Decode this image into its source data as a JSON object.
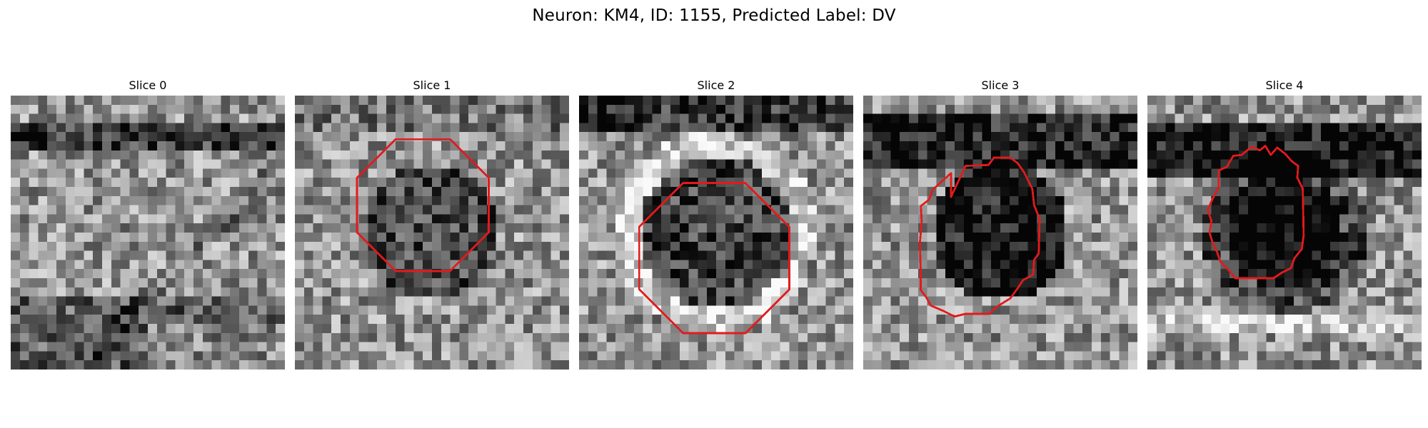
{
  "figure": {
    "title": "Neuron: KM4, ID: 1155, Predicted Label: DV"
  },
  "colors": {
    "contour": "#e31a1c",
    "image_colormap": "grayscale"
  },
  "panels": [
    {
      "title": "Slice 0",
      "seed": 11,
      "has_contour": false,
      "dark_band": true,
      "contour_shape": "none"
    },
    {
      "title": "Slice 1",
      "seed": 23,
      "has_contour": true,
      "dark_band": false,
      "contour_shape": "octagon"
    },
    {
      "title": "Slice 2",
      "seed": 37,
      "has_contour": true,
      "dark_band": true,
      "contour_shape": "octagon"
    },
    {
      "title": "Slice 3",
      "seed": 51,
      "has_contour": true,
      "dark_band": true,
      "contour_shape": "irregular"
    },
    {
      "title": "Slice 4",
      "seed": 67,
      "has_contour": true,
      "dark_band": true,
      "contour_shape": "irregular"
    }
  ]
}
